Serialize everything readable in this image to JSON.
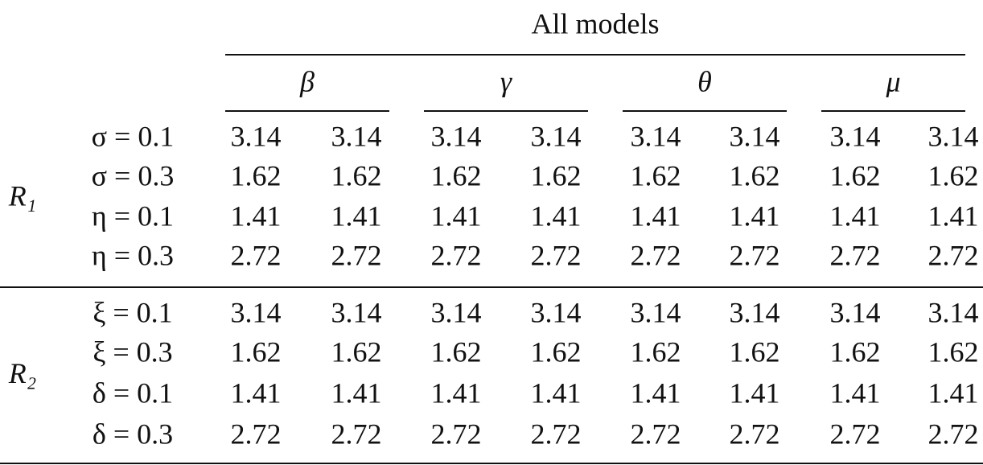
{
  "table": {
    "header": "All models",
    "groups": [
      "β",
      "γ",
      "θ",
      "μ"
    ],
    "sections": [
      {
        "label": "R₁",
        "rows": [
          {
            "label": "σ = 0.1",
            "cells": [
              "3.14",
              "3.14",
              "3.14",
              "3.14",
              "3.14",
              "3.14",
              "3.14",
              "3.14"
            ]
          },
          {
            "label": "σ = 0.3",
            "cells": [
              "1.62",
              "1.62",
              "1.62",
              "1.62",
              "1.62",
              "1.62",
              "1.62",
              "1.62"
            ]
          },
          {
            "label": "η = 0.1",
            "cells": [
              "1.41",
              "1.41",
              "1.41",
              "1.41",
              "1.41",
              "1.41",
              "1.41",
              "1.41"
            ]
          },
          {
            "label": "η = 0.3",
            "cells": [
              "2.72",
              "2.72",
              "2.72",
              "2.72",
              "2.72",
              "2.72",
              "2.72",
              "2.72"
            ]
          }
        ]
      },
      {
        "label": "R₂",
        "rows": [
          {
            "label": "ξ = 0.1",
            "cells": [
              "3.14",
              "3.14",
              "3.14",
              "3.14",
              "3.14",
              "3.14",
              "3.14",
              "3.14"
            ]
          },
          {
            "label": "ξ = 0.3",
            "cells": [
              "1.62",
              "1.62",
              "1.62",
              "1.62",
              "1.62",
              "1.62",
              "1.62",
              "1.62"
            ]
          },
          {
            "label": "δ = 0.1",
            "cells": [
              "1.41",
              "1.41",
              "1.41",
              "1.41",
              "1.41",
              "1.41",
              "1.41",
              "1.41"
            ]
          },
          {
            "label": "δ = 0.3",
            "cells": [
              "2.72",
              "2.72",
              "2.72",
              "2.72",
              "2.72",
              "2.72",
              "2.72",
              "2.72"
            ]
          }
        ]
      }
    ]
  }
}
